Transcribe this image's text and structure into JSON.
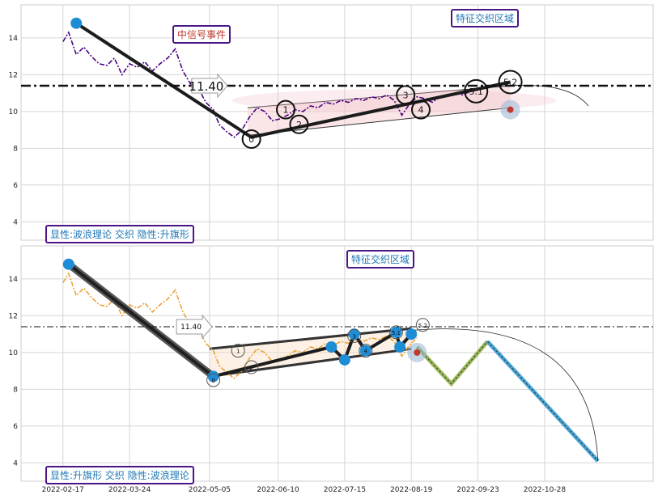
{
  "chart_data": [
    {
      "type": "line",
      "panel": "top",
      "ylim": [
        3,
        15.8
      ],
      "yticks": [
        4,
        6,
        8,
        10,
        12,
        14
      ],
      "reference_line": {
        "value": 11.4,
        "label": "11.40"
      },
      "price_series": [
        [
          "2022-02-17",
          13.8
        ],
        [
          "2022-02-20",
          14.3
        ],
        [
          "2022-02-24",
          13.1
        ],
        [
          "2022-02-28",
          13.5
        ],
        [
          "2022-03-04",
          13.0
        ],
        [
          "2022-03-08",
          12.6
        ],
        [
          "2022-03-12",
          12.5
        ],
        [
          "2022-03-16",
          12.9
        ],
        [
          "2022-03-20",
          12.0
        ],
        [
          "2022-03-24",
          12.6
        ],
        [
          "2022-03-28",
          12.4
        ],
        [
          "2022-04-01",
          12.7
        ],
        [
          "2022-04-05",
          12.2
        ],
        [
          "2022-04-09",
          12.6
        ],
        [
          "2022-04-13",
          12.9
        ],
        [
          "2022-04-17",
          13.4
        ],
        [
          "2022-04-21",
          12.2
        ],
        [
          "2022-04-25",
          11.5
        ],
        [
          "2022-04-29",
          11.3
        ],
        [
          "2022-05-03",
          10.5
        ],
        [
          "2022-05-07",
          10.1
        ],
        [
          "2022-05-10",
          9.3
        ],
        [
          "2022-05-14",
          8.9
        ],
        [
          "2022-05-18",
          8.6
        ],
        [
          "2022-05-22",
          9.0
        ],
        [
          "2022-05-26",
          9.7
        ],
        [
          "2022-05-30",
          10.2
        ],
        [
          "2022-06-03",
          10.0
        ],
        [
          "2022-06-07",
          9.5
        ],
        [
          "2022-06-11",
          9.6
        ],
        [
          "2022-06-15",
          9.8
        ],
        [
          "2022-06-19",
          10.1
        ],
        [
          "2022-06-23",
          10.0
        ],
        [
          "2022-06-27",
          10.3
        ],
        [
          "2022-07-01",
          10.2
        ],
        [
          "2022-07-05",
          10.5
        ],
        [
          "2022-07-09",
          10.4
        ],
        [
          "2022-07-13",
          10.6
        ],
        [
          "2022-07-17",
          10.5
        ],
        [
          "2022-07-21",
          10.7
        ],
        [
          "2022-07-25",
          10.6
        ],
        [
          "2022-07-29",
          10.8
        ],
        [
          "2022-08-02",
          10.7
        ],
        [
          "2022-08-06",
          10.9
        ],
        [
          "2022-08-10",
          10.6
        ],
        [
          "2022-08-14",
          9.8
        ],
        [
          "2022-08-18",
          10.4
        ],
        [
          "2022-08-22",
          10.8
        ],
        [
          "2022-08-26",
          10.7
        ],
        [
          "2022-08-30",
          10.5
        ],
        [
          "2022-09-03",
          10.8
        ],
        [
          "2022-09-07",
          10.9
        ],
        [
          "2022-09-11",
          11.0
        ],
        [
          "2022-09-15",
          10.9
        ],
        [
          "2022-09-19",
          11.1
        ],
        [
          "2022-09-23",
          11.2
        ],
        [
          "2022-09-27",
          11.3
        ],
        [
          "2022-10-01",
          11.4
        ],
        [
          "2022-10-05",
          11.5
        ]
      ],
      "wave_line": [
        [
          "2022-02-24",
          14.8
        ],
        [
          "2022-05-27",
          8.6
        ],
        [
          "2022-10-10",
          11.6
        ]
      ],
      "wave_points": [
        {
          "label": "0",
          "date": "2022-05-27",
          "value": 8.5
        },
        {
          "label": "1",
          "date": "2022-06-14",
          "value": 10.1
        },
        {
          "label": "2",
          "date": "2022-06-21",
          "value": 9.3
        },
        {
          "label": "3",
          "date": "2022-08-16",
          "value": 10.9
        },
        {
          "label": "4",
          "date": "2022-08-24",
          "value": 10.1
        },
        {
          "label": "5.1",
          "date": "2022-09-22",
          "value": 11.1
        },
        {
          "label": "5.2",
          "date": "2022-10-10",
          "value": 11.6
        }
      ],
      "channel": {
        "upper": [
          [
            "2022-05-25",
            10.2
          ],
          [
            "2022-10-10",
            11.4
          ]
        ],
        "lower": [
          [
            "2022-05-25",
            8.7
          ],
          [
            "2022-10-10",
            10.2
          ]
        ]
      },
      "highlight": {
        "date": "2022-10-10",
        "value": 10.1
      },
      "annotations": {
        "event": "中信号事件",
        "zone": "特征交织区域",
        "corner": "显性:波浪理论 交织 隐性:升旗形"
      }
    },
    {
      "type": "line",
      "panel": "bottom",
      "ylim": [
        3,
        15.8
      ],
      "yticks": [
        4,
        6,
        8,
        10,
        12,
        14
      ],
      "x_ticks": [
        "2022-02-17",
        "2022-03-24",
        "2022-05-05",
        "2022-06-10",
        "2022-07-15",
        "2022-08-19",
        "2022-09-23",
        "2022-10-28"
      ],
      "reference_line": {
        "value": 11.4,
        "label": "11.40"
      },
      "price_series": [
        [
          "2022-02-17",
          13.8
        ],
        [
          "2022-02-20",
          14.3
        ],
        [
          "2022-02-24",
          13.1
        ],
        [
          "2022-02-28",
          13.5
        ],
        [
          "2022-03-04",
          13.0
        ],
        [
          "2022-03-08",
          12.6
        ],
        [
          "2022-03-12",
          12.5
        ],
        [
          "2022-03-16",
          12.9
        ],
        [
          "2022-03-20",
          12.0
        ],
        [
          "2022-03-24",
          12.6
        ],
        [
          "2022-03-28",
          12.4
        ],
        [
          "2022-04-01",
          12.7
        ],
        [
          "2022-04-05",
          12.2
        ],
        [
          "2022-04-09",
          12.6
        ],
        [
          "2022-04-13",
          12.9
        ],
        [
          "2022-04-17",
          13.4
        ],
        [
          "2022-04-21",
          12.2
        ],
        [
          "2022-04-25",
          11.5
        ],
        [
          "2022-04-29",
          11.3
        ],
        [
          "2022-05-03",
          10.5
        ],
        [
          "2022-05-07",
          10.1
        ],
        [
          "2022-05-10",
          9.3
        ],
        [
          "2022-05-14",
          8.9
        ],
        [
          "2022-05-18",
          8.6
        ],
        [
          "2022-05-22",
          9.0
        ],
        [
          "2022-05-26",
          9.7
        ],
        [
          "2022-05-30",
          10.2
        ],
        [
          "2022-06-03",
          10.0
        ],
        [
          "2022-06-07",
          9.5
        ],
        [
          "2022-06-11",
          9.6
        ],
        [
          "2022-06-15",
          9.8
        ],
        [
          "2022-06-19",
          10.1
        ],
        [
          "2022-06-23",
          10.0
        ],
        [
          "2022-06-27",
          10.3
        ],
        [
          "2022-07-01",
          10.2
        ],
        [
          "2022-07-05",
          10.5
        ],
        [
          "2022-07-09",
          10.4
        ],
        [
          "2022-07-13",
          10.6
        ],
        [
          "2022-07-17",
          10.5
        ],
        [
          "2022-07-21",
          10.7
        ],
        [
          "2022-07-25",
          10.6
        ],
        [
          "2022-07-29",
          10.8
        ],
        [
          "2022-08-02",
          10.7
        ],
        [
          "2022-08-06",
          10.9
        ],
        [
          "2022-08-10",
          10.6
        ],
        [
          "2022-08-14",
          9.8
        ],
        [
          "2022-08-18",
          10.4
        ],
        [
          "2022-08-22",
          10.8
        ]
      ],
      "wave_line": [
        [
          "2022-02-20",
          14.8
        ],
        [
          "2022-05-07",
          8.7
        ],
        [
          "2022-07-08",
          10.3
        ],
        [
          "2022-07-15",
          9.6
        ],
        [
          "2022-07-20",
          11.0
        ],
        [
          "2022-07-26",
          10.1
        ],
        [
          "2022-08-11",
          11.1
        ],
        [
          "2022-08-13",
          10.3
        ],
        [
          "2022-08-19",
          11.0
        ]
      ],
      "wave_points": [
        {
          "label": "0",
          "date": "2022-05-07",
          "value": 8.5
        },
        {
          "label": "1",
          "date": "2022-05-20",
          "value": 10.1
        },
        {
          "label": "2",
          "date": "2022-05-27",
          "value": 9.2
        },
        {
          "label": "3",
          "date": "2022-07-20",
          "value": 10.9
        },
        {
          "label": "4",
          "date": "2022-07-26",
          "value": 10.1
        },
        {
          "label": "5.1",
          "date": "2022-08-11",
          "value": 11.1
        },
        {
          "label": "5.2",
          "date": "2022-08-25",
          "value": 11.5
        }
      ],
      "projection_green": [
        [
          "2022-08-22",
          10.3
        ],
        [
          "2022-09-09",
          8.3
        ],
        [
          "2022-09-28",
          10.6
        ]
      ],
      "projection_blue": [
        [
          "2022-09-28",
          10.6
        ],
        [
          "2022-11-25",
          4.1
        ]
      ],
      "channel": {
        "upper": [
          [
            "2022-05-05",
            10.2
          ],
          [
            "2022-08-19",
            11.3
          ]
        ],
        "lower": [
          [
            "2022-05-05",
            8.7
          ],
          [
            "2022-08-19",
            10.2
          ]
        ]
      },
      "highlight": {
        "date": "2022-08-22",
        "value": 10.0
      },
      "annotations": {
        "zone": "特征交织区域",
        "corner": "显性:升旗形 交织 隐性:波浪理论"
      }
    }
  ]
}
